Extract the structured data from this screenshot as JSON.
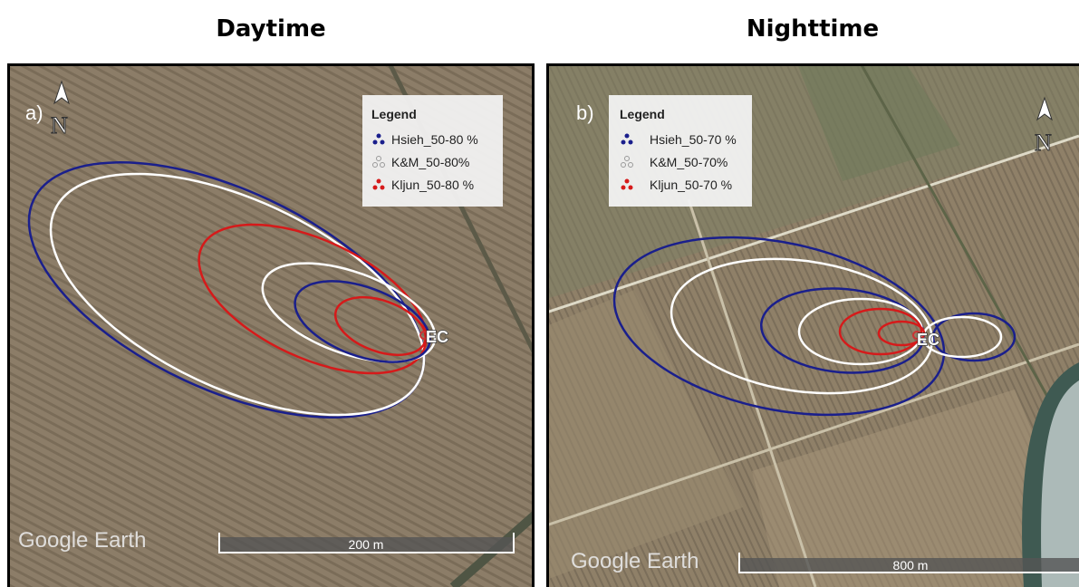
{
  "panels": [
    {
      "title": "Daytime",
      "label": "a)",
      "north": "N",
      "legend_title": "Legend",
      "legend": [
        "Hsieh_50-80 %",
        "K&M_50-80%",
        "Kljun_50-80 %"
      ],
      "station": "EC",
      "watermark": "Google Earth",
      "scale_bar": "200 m"
    },
    {
      "title": "Nighttime",
      "label": "b)",
      "north": "N",
      "legend_title": "Legend",
      "legend": [
        "Hsieh_50-70 %",
        "K&M_50-70%",
        "Kljun_50-70 %"
      ],
      "station": "EC",
      "watermark": "Google Earth",
      "scale_bar": "800 m"
    }
  ]
}
